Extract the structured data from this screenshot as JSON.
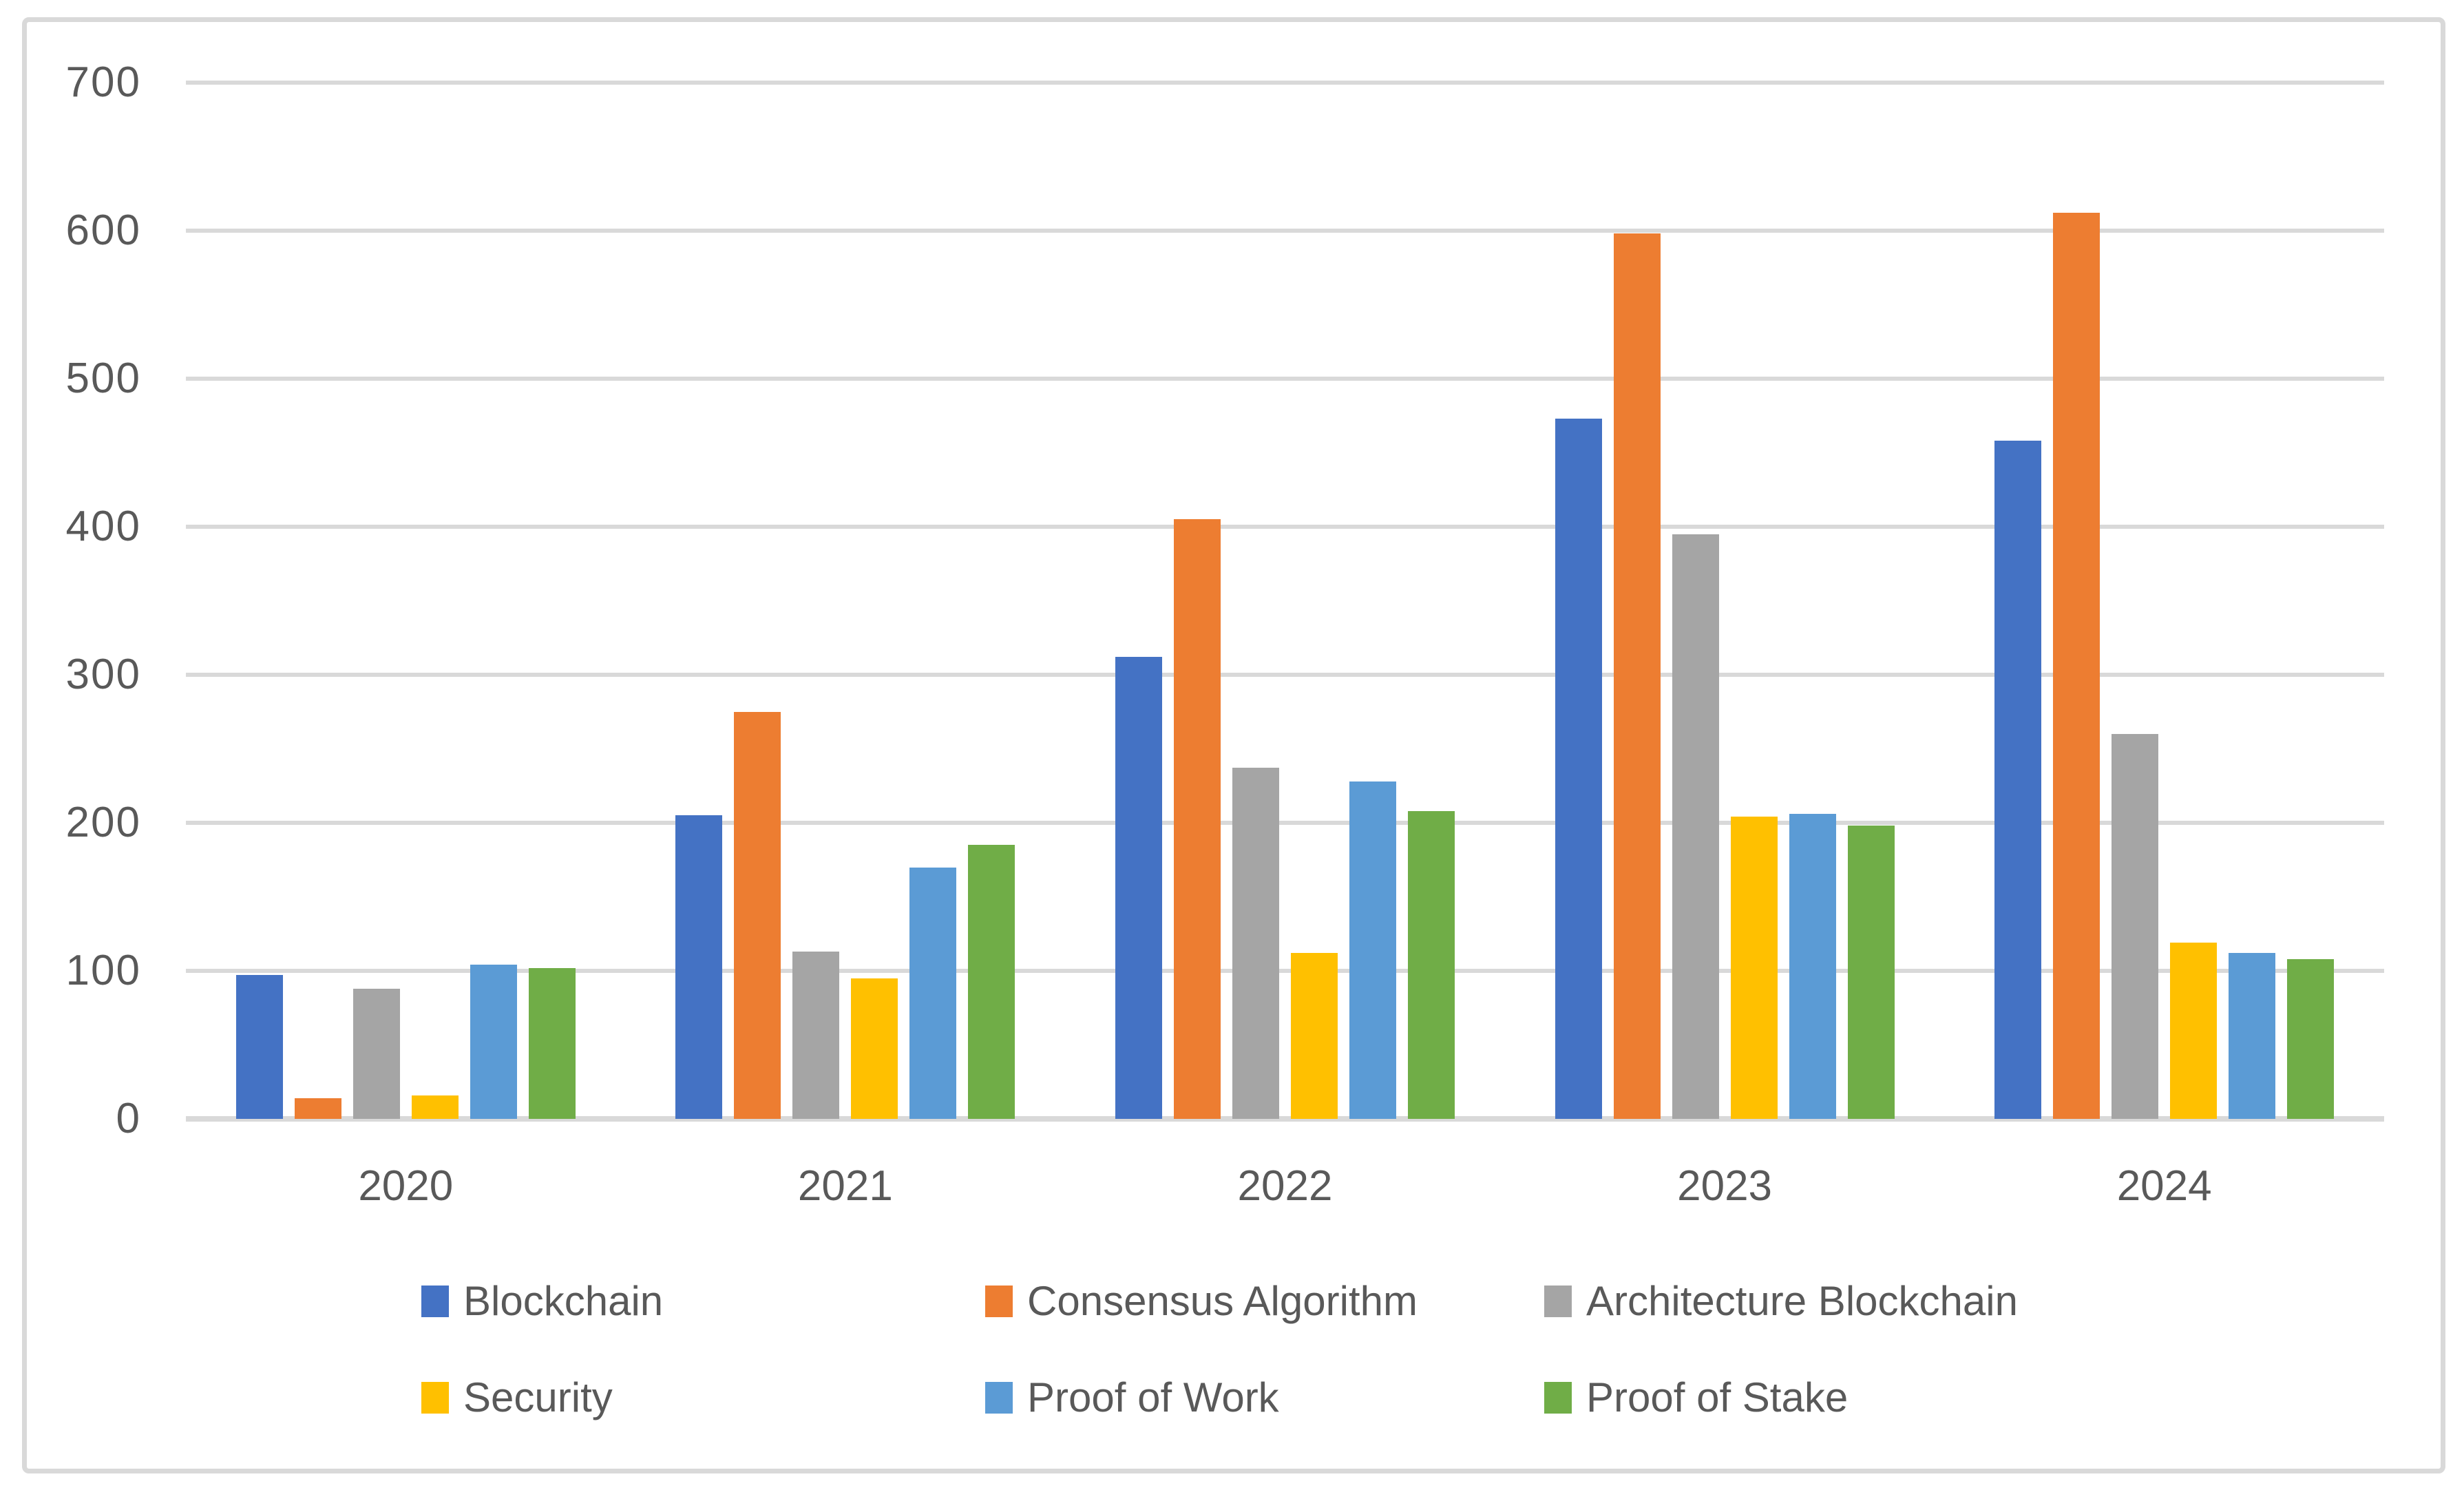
{
  "chart_data": {
    "type": "bar",
    "title": "",
    "xlabel": "",
    "ylabel": "",
    "categories": [
      "2020",
      "2021",
      "2022",
      "2023",
      "2024"
    ],
    "series": [
      {
        "name": "Blockchain",
        "color": "#4472C4",
        "values": [
          97,
          205,
          312,
          473,
          458
        ]
      },
      {
        "name": "Consensus Algorithm",
        "color": "#ED7D31",
        "values": [
          14,
          275,
          405,
          598,
          612
        ]
      },
      {
        "name": "Architecture Blockchain",
        "color": "#A5A5A5",
        "values": [
          88,
          113,
          237,
          395,
          260
        ]
      },
      {
        "name": "Security",
        "color": "#FFC000",
        "values": [
          16,
          95,
          112,
          204,
          119
        ]
      },
      {
        "name": "Proof of Work",
        "color": "#5B9BD5",
        "values": [
          104,
          170,
          228,
          206,
          112
        ]
      },
      {
        "name": "Proof of Stake",
        "color": "#70AD47",
        "values": [
          102,
          185,
          208,
          198,
          108
        ]
      }
    ],
    "ylim": [
      0,
      700
    ],
    "ytick_step": 100,
    "y_tick_labels": [
      "0",
      "100",
      "200",
      "300",
      "400",
      "500",
      "600",
      "700"
    ],
    "grid": "horizontal-only",
    "legend_position": "bottom-two-rows"
  },
  "colors": {
    "gridline": "#D9D9D9",
    "frame_border": "#D9D9D9",
    "axis_text": "#595959",
    "background": "#FFFFFF"
  }
}
